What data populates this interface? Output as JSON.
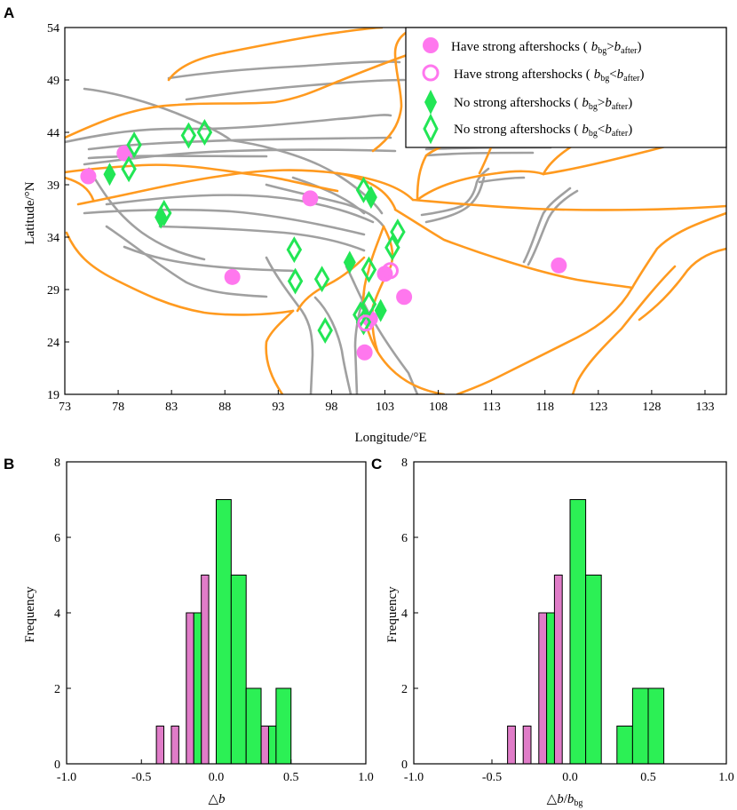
{
  "panels": {
    "a": "A",
    "b": "B",
    "c": "C"
  },
  "colors": {
    "fault": "#a0a0a0",
    "boundary": "#ff9a1f",
    "magenta": "#ff77ee",
    "green": "#22e655",
    "bar_magenta": "#e07cc8",
    "bar_green": "#2cf055"
  },
  "map": {
    "xlabel": "Longitude/°E",
    "ylabel": "Latitude/°N",
    "xticks": [
      73,
      78,
      83,
      88,
      93,
      98,
      103,
      108,
      113,
      118,
      123,
      128,
      133
    ],
    "yticks": [
      19,
      24,
      29,
      34,
      39,
      44,
      49,
      54
    ],
    "xlim": [
      73,
      135
    ],
    "ylim": [
      19,
      54
    ],
    "legend": [
      {
        "label": "Have strong aftershocks (",
        "cond": "b_bg > b_after",
        "sym": "filled-circle"
      },
      {
        "label": "Have strong aftershocks (",
        "cond": "b_bg < b_after",
        "sym": "open-circle"
      },
      {
        "label": "No strong aftershocks (",
        "cond": "b_bg > b_after",
        "sym": "filled-diamond"
      },
      {
        "label": "No strong aftershocks (",
        "cond": "b_bg < b_after",
        "sym": "open-diamond"
      }
    ],
    "sub_bg": "bg",
    "sub_after": "after",
    "b_letter": "b",
    "close_paren": ")"
  },
  "chart_data": [
    {
      "type": "scatter",
      "title": "",
      "xlabel": "Longitude/°E",
      "ylabel": "Latitude/°N",
      "xlim": [
        73,
        135
      ],
      "ylim": [
        19,
        54
      ],
      "series": [
        {
          "name": "Have strong aftershocks (b_bg > b_after)",
          "marker": "filled-circle",
          "points": [
            [
              75.2,
              39.8
            ],
            [
              78.6,
              42.0
            ],
            [
              88.7,
              30.2
            ],
            [
              96.0,
              37.7
            ],
            [
              103.0,
              30.5
            ],
            [
              104.8,
              28.3
            ],
            [
              101.6,
              26.2
            ],
            [
              101.1,
              23.0
            ],
            [
              119.3,
              31.3
            ]
          ]
        },
        {
          "name": "Have strong aftershocks (b_bg < b_after)",
          "marker": "open-circle",
          "points": [
            [
              103.5,
              30.8
            ],
            [
              101.2,
              25.8
            ]
          ]
        },
        {
          "name": "No strong aftershocks (b_bg > b_after)",
          "marker": "filled-diamond",
          "points": [
            [
              77.2,
              40.0
            ],
            [
              82.0,
              35.9
            ],
            [
              101.7,
              37.8
            ],
            [
              99.7,
              31.6
            ],
            [
              102.6,
              27.0
            ]
          ]
        },
        {
          "name": "No strong aftershocks (b_bg < b_after)",
          "marker": "open-diamond",
          "points": [
            [
              79.0,
              40.5
            ],
            [
              79.5,
              42.8
            ],
            [
              84.6,
              43.7
            ],
            [
              86.1,
              44.0
            ],
            [
              82.3,
              36.3
            ],
            [
              101.0,
              38.5
            ],
            [
              103.7,
              33.0
            ],
            [
              104.2,
              34.5
            ],
            [
              94.5,
              32.8
            ],
            [
              94.6,
              29.8
            ],
            [
              97.1,
              30.0
            ],
            [
              101.5,
              30.9
            ],
            [
              97.4,
              25.1
            ],
            [
              101.5,
              27.6
            ],
            [
              100.7,
              26.6
            ],
            [
              101.0,
              25.9
            ]
          ]
        }
      ]
    },
    {
      "type": "bar",
      "title": "",
      "xlabel": "△b",
      "ylabel": "Frequency",
      "xlim": [
        -1.0,
        1.0
      ],
      "ylim": [
        0,
        8
      ],
      "xticks": [
        "-1.0",
        "-0.5",
        "0.0",
        "0.5",
        "1.0"
      ],
      "yticks": [
        "0",
        "2",
        "4",
        "6",
        "8"
      ],
      "series": [
        {
          "name": "b_bg < b_after",
          "color": "magenta",
          "bins": [
            [
              -0.4,
              -0.35,
              1
            ],
            [
              -0.3,
              -0.25,
              1
            ],
            [
              -0.2,
              -0.15,
              4
            ],
            [
              -0.1,
              -0.05,
              5
            ],
            [
              0.0,
              0.05,
              1
            ],
            [
              0.3,
              0.35,
              1
            ]
          ]
        },
        {
          "name": "b_bg > b_after",
          "color": "green",
          "bins": [
            [
              -0.15,
              -0.1,
              4
            ],
            [
              0.0,
              0.1,
              7
            ],
            [
              0.1,
              0.2,
              5
            ],
            [
              0.2,
              0.3,
              2
            ],
            [
              0.35,
              0.4,
              1
            ],
            [
              0.4,
              0.5,
              2
            ]
          ]
        }
      ]
    },
    {
      "type": "bar",
      "title": "",
      "xlabel": "△b/b_bg",
      "ylabel": "Frequency",
      "xlim": [
        -1.0,
        1.0
      ],
      "ylim": [
        0,
        8
      ],
      "xticks": [
        "-1.0",
        "-0.5",
        "0.0",
        "0.5",
        "1.0"
      ],
      "yticks": [
        "0",
        "2",
        "4",
        "6",
        "8"
      ],
      "series": [
        {
          "name": "b_bg < b_after",
          "color": "magenta",
          "bins": [
            [
              -0.4,
              -0.35,
              1
            ],
            [
              -0.3,
              -0.25,
              1
            ],
            [
              -0.2,
              -0.15,
              4
            ],
            [
              -0.1,
              -0.05,
              5
            ],
            [
              0.0,
              0.05,
              1
            ],
            [
              0.4,
              0.45,
              1
            ]
          ]
        },
        {
          "name": "b_bg > b_after",
          "color": "green",
          "bins": [
            [
              -0.15,
              -0.1,
              4
            ],
            [
              0.0,
              0.1,
              7
            ],
            [
              0.1,
              0.2,
              5
            ],
            [
              0.3,
              0.4,
              1
            ],
            [
              0.4,
              0.5,
              2
            ],
            [
              0.5,
              0.6,
              2
            ]
          ]
        }
      ]
    }
  ]
}
